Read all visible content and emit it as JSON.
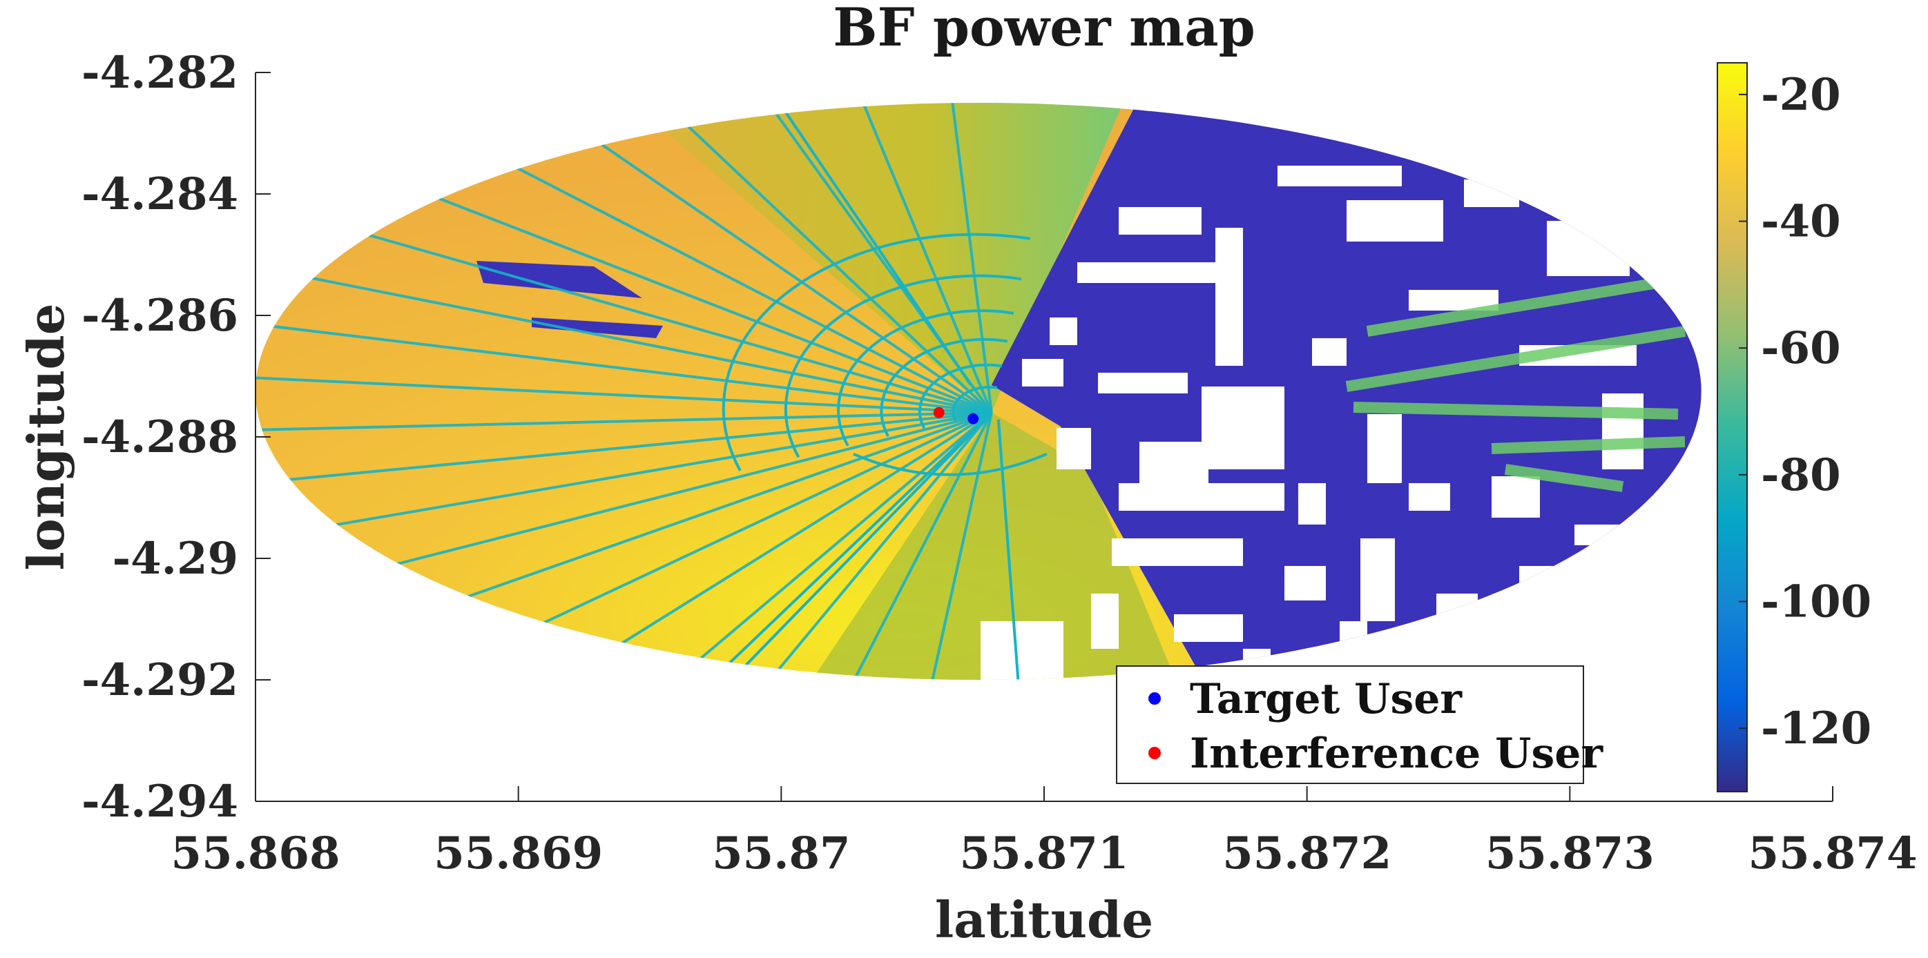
{
  "chart_data": {
    "type": "heatmap",
    "title": "BF power map",
    "xlabel": "latitude",
    "ylabel": "longitude",
    "xlim": [
      55.868,
      55.874
    ],
    "ylim": [
      -4.294,
      -4.282
    ],
    "x_ticks": [
      "55.868",
      "55.869",
      "55.87",
      "55.871",
      "55.872",
      "55.873",
      "55.874"
    ],
    "x_tick_values": [
      55.868,
      55.869,
      55.87,
      55.871,
      55.872,
      55.873,
      55.874
    ],
    "y_ticks": [
      "-4.282",
      "-4.284",
      "-4.286",
      "-4.288",
      "-4.29",
      "-4.292",
      "-4.294"
    ],
    "y_tick_values": [
      -4.282,
      -4.284,
      -4.286,
      -4.288,
      -4.29,
      -4.292,
      -4.294
    ],
    "colorbar": {
      "range": [
        -130,
        -15
      ],
      "ticks": [
        "-20",
        "-40",
        "-60",
        "-80",
        "-100",
        "-120"
      ],
      "tick_values": [
        -20,
        -40,
        -60,
        -80,
        -100,
        -120
      ],
      "colormap": "parula"
    },
    "coverage": {
      "center": {
        "x": 55.8708,
        "y": -4.2876
      },
      "x_range": [
        55.868,
        55.8735
      ],
      "y_range": [
        -4.292,
        -4.2825
      ],
      "colored_sector_edges": {
        "top_x": 55.8713,
        "bottom_x": 55.8715
      }
    },
    "series": [
      {
        "name": "Target User",
        "color": "#0000ff",
        "x": 55.87073,
        "y": -4.2877
      },
      {
        "name": "Interference User",
        "color": "#ff0000",
        "x": 55.8706,
        "y": -4.2876
      }
    ],
    "legend_position": "bottom-right",
    "grid": false
  }
}
